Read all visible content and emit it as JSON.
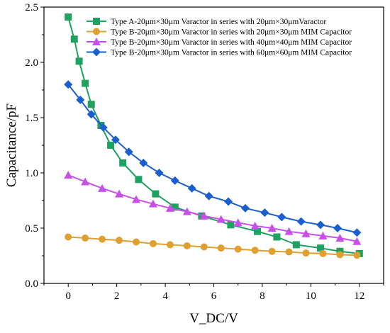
{
  "chart_data": {
    "type": "line",
    "title": "",
    "xlabel": "V_DC/V",
    "ylabel": "Capacitance/pF",
    "xlim": [
      -1,
      13
    ],
    "ylim": [
      0.0,
      2.5
    ],
    "xticks": [
      0,
      2,
      4,
      6,
      8,
      10,
      12
    ],
    "yticks": [
      0.0,
      0.5,
      1.0,
      1.5,
      2.0,
      2.5
    ],
    "xtick_labels": [
      "0",
      "2",
      "4",
      "6",
      "8",
      "10",
      "12"
    ],
    "ytick_labels": [
      "0.0",
      "0.5",
      "1.0",
      "1.5",
      "2.0",
      "2.5"
    ],
    "grid": false,
    "legend_position": "top-right",
    "series": [
      {
        "name": "Type A-20μm×30μm Varactor in series with 20μm×30μmVaractor",
        "color": "#1fa15f",
        "marker": "square",
        "x": [
          0,
          0.25,
          0.45,
          0.7,
          0.95,
          1.35,
          1.75,
          2.25,
          2.9,
          3.6,
          4.4,
          5.5,
          6.7,
          7.8,
          8.6,
          9.4,
          10.4,
          11.2,
          12
        ],
        "y": [
          2.41,
          2.21,
          2.01,
          1.81,
          1.62,
          1.43,
          1.25,
          1.09,
          0.94,
          0.81,
          0.69,
          0.61,
          0.53,
          0.47,
          0.42,
          0.35,
          0.32,
          0.29,
          0.27
        ]
      },
      {
        "name": "Type B-20μm×30μm Varactor in series with 20μm×30μm MIM Capacitor",
        "color": "#e0a030",
        "marker": "circle",
        "x": [
          0,
          0.7,
          1.4,
          2.1,
          2.8,
          3.5,
          4.2,
          4.9,
          5.6,
          6.3,
          7.0,
          7.7,
          8.4,
          9.1,
          9.8,
          10.5,
          11.2,
          11.9
        ],
        "y": [
          0.42,
          0.41,
          0.4,
          0.39,
          0.375,
          0.36,
          0.35,
          0.34,
          0.33,
          0.32,
          0.31,
          0.3,
          0.29,
          0.285,
          0.275,
          0.27,
          0.26,
          0.255
        ]
      },
      {
        "name": "Type B-20μm×30μm Varactor in series with 40μm×40μm MIM Capacitor",
        "color": "#c850e8",
        "marker": "triangle",
        "x": [
          0,
          0.7,
          1.4,
          2.1,
          2.8,
          3.5,
          4.2,
          4.9,
          5.6,
          6.3,
          7.0,
          7.7,
          8.4,
          9.1,
          9.8,
          10.5,
          11.2,
          11.9
        ],
        "y": [
          0.98,
          0.92,
          0.86,
          0.81,
          0.76,
          0.72,
          0.68,
          0.65,
          0.61,
          0.58,
          0.55,
          0.52,
          0.5,
          0.47,
          0.45,
          0.43,
          0.41,
          0.38
        ]
      },
      {
        "name": "Type B-20μm×30μm Varactor in series with 60μm×60μm MIM Capacitor",
        "color": "#1a5fcf",
        "marker": "diamond",
        "x": [
          0,
          0.5,
          0.95,
          1.45,
          1.95,
          2.5,
          3.1,
          3.75,
          4.4,
          5.1,
          5.8,
          6.6,
          7.3,
          8.1,
          8.8,
          9.6,
          10.4,
          11.1,
          11.9
        ],
        "y": [
          1.8,
          1.66,
          1.53,
          1.41,
          1.3,
          1.19,
          1.09,
          1.0,
          0.93,
          0.86,
          0.79,
          0.74,
          0.68,
          0.64,
          0.6,
          0.56,
          0.53,
          0.5,
          0.46
        ]
      }
    ]
  }
}
